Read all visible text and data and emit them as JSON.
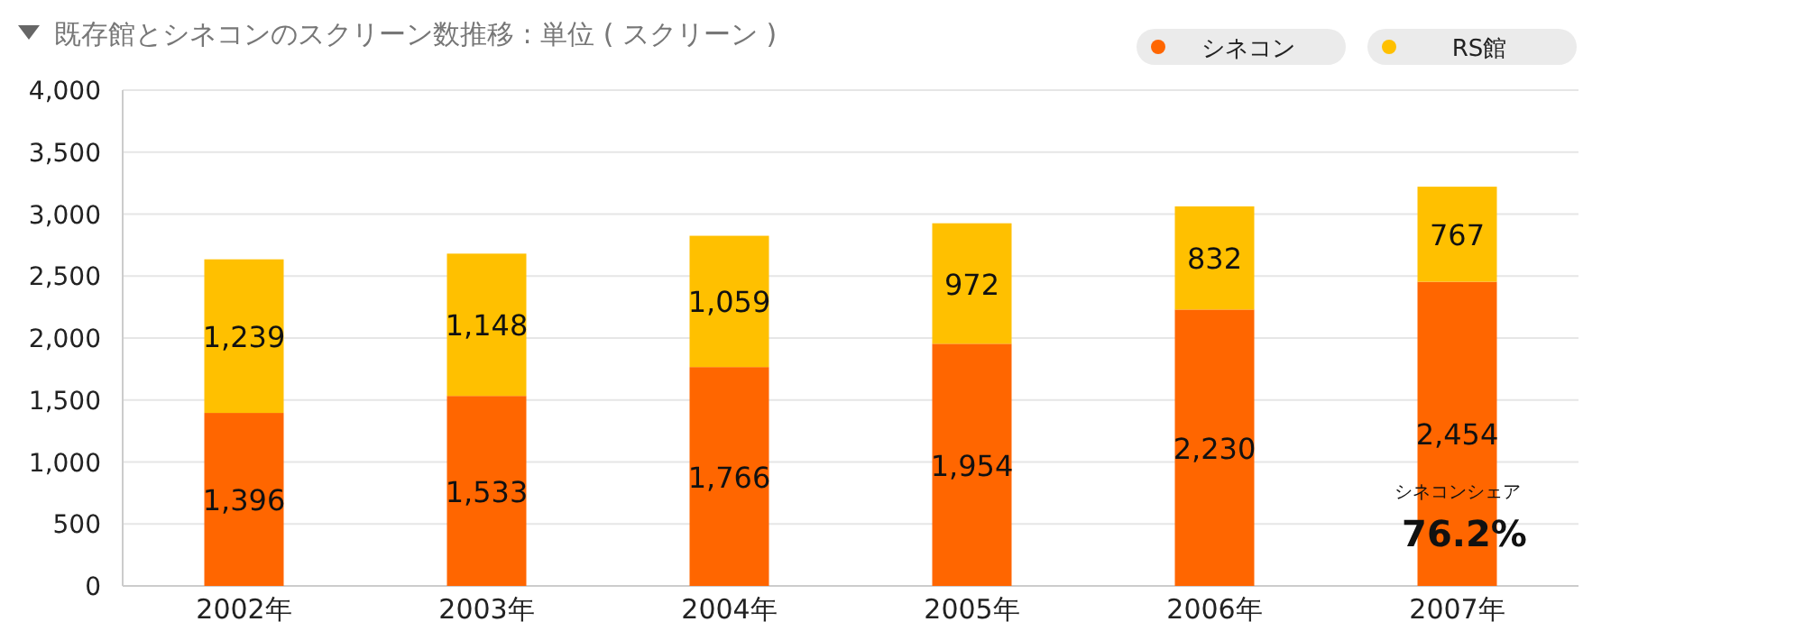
{
  "chart_data": {
    "type": "bar",
    "stacked": true,
    "title": "既存館とシネコンのスクリーン数推移 : 単位 ( スクリーン )",
    "categories": [
      "2002年",
      "2003年",
      "2004年",
      "2005年",
      "2006年",
      "2007年"
    ],
    "series": [
      {
        "name": "シネコン",
        "color": "#ff6600",
        "values": [
          1396,
          1533,
          1766,
          1954,
          2230,
          2454
        ],
        "value_labels": [
          "1,396",
          "1,533",
          "1,766",
          "1,954",
          "2,230",
          "2,454"
        ]
      },
      {
        "name": "RS館",
        "color": "#ffc000",
        "values": [
          1239,
          1148,
          1059,
          972,
          832,
          767
        ],
        "value_labels": [
          "1,239",
          "1,148",
          "1,059",
          "972",
          "832",
          "767"
        ]
      }
    ],
    "ylim": [
      0,
      4000
    ],
    "yticks": [
      {
        "value": 0,
        "label": "0"
      },
      {
        "value": 500,
        "label": "500"
      },
      {
        "value": 1000,
        "label": "1,000"
      },
      {
        "value": 1500,
        "label": "1,500"
      },
      {
        "value": 2000,
        "label": "2,000"
      },
      {
        "value": 2500,
        "label": "2,500"
      },
      {
        "value": 3000,
        "label": "3,000"
      },
      {
        "value": 3500,
        "label": "3,500"
      },
      {
        "value": 4000,
        "label": "4,000"
      }
    ],
    "grid": "y",
    "legend": "top right",
    "annotations": [
      "シネコンシェア",
      "76.2%"
    ]
  }
}
